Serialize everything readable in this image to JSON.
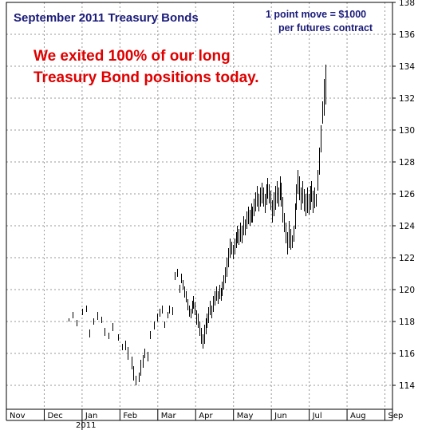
{
  "chart_data": {
    "type": "ohlc",
    "title": "September 2011 Treasury Bonds",
    "note_line1": "1 point move = $1000",
    "note_line2": "per futures contract",
    "annotation_line1": "We exited 100%  of our long",
    "annotation_line2": "Treasury Bond positions today.",
    "ylim": [
      112.5,
      138
    ],
    "yticks": [
      114,
      116,
      118,
      120,
      122,
      124,
      126,
      128,
      130,
      132,
      134,
      136,
      138
    ],
    "xlim": [
      0,
      10.2
    ],
    "months": [
      "Nov",
      "Dec",
      "Jan",
      "Feb",
      "Mar",
      "Apr",
      "May",
      "Jun",
      "Jul",
      "Aug",
      "Sep"
    ],
    "year_label": "2011",
    "grid": true,
    "bars": [
      [
        1.65,
        118.2,
        118.0
      ],
      [
        1.75,
        118.6,
        118.2
      ],
      [
        1.85,
        118.1,
        117.7
      ],
      [
        2.0,
        118.8,
        118.4
      ],
      [
        2.1,
        119.0,
        118.6
      ],
      [
        2.2,
        117.5,
        117.0
      ],
      [
        2.3,
        118.2,
        117.8
      ],
      [
        2.4,
        118.6,
        118.1
      ],
      [
        2.5,
        118.3,
        117.9
      ],
      [
        2.6,
        117.6,
        117.1
      ],
      [
        2.7,
        117.3,
        116.9
      ],
      [
        2.8,
        117.9,
        117.4
      ],
      [
        2.95,
        117.2,
        116.8
      ],
      [
        3.05,
        116.6,
        116.2
      ],
      [
        3.15,
        116.8,
        116.2
      ],
      [
        3.2,
        116.4,
        115.6
      ],
      [
        3.3,
        115.8,
        115.0
      ],
      [
        3.35,
        115.2,
        114.3
      ],
      [
        3.42,
        114.6,
        114.0
      ],
      [
        3.5,
        114.8,
        114.2
      ],
      [
        3.55,
        115.6,
        114.6
      ],
      [
        3.6,
        115.9,
        115.1
      ],
      [
        3.65,
        116.3,
        115.7
      ],
      [
        3.72,
        116.1,
        115.5
      ],
      [
        3.8,
        117.4,
        116.9
      ],
      [
        3.9,
        118.0,
        117.5
      ],
      [
        3.98,
        118.5,
        118.0
      ],
      [
        4.05,
        118.8,
        118.3
      ],
      [
        4.1,
        119.0,
        118.5
      ],
      [
        4.18,
        118.0,
        117.6
      ],
      [
        4.25,
        118.6,
        118.2
      ],
      [
        4.3,
        119.0,
        118.5
      ],
      [
        4.38,
        118.9,
        118.4
      ],
      [
        4.45,
        121.1,
        120.6
      ],
      [
        4.52,
        121.3,
        120.8
      ],
      [
        4.58,
        120.3,
        119.8
      ],
      [
        4.62,
        121.0,
        120.4
      ],
      [
        4.66,
        120.6,
        120.0
      ],
      [
        4.7,
        120.2,
        119.5
      ],
      [
        4.74,
        119.9,
        119.2
      ],
      [
        4.78,
        119.4,
        118.7
      ],
      [
        4.82,
        119.0,
        118.3
      ],
      [
        4.86,
        118.8,
        118.2
      ],
      [
        4.9,
        119.3,
        118.5
      ],
      [
        4.94,
        119.6,
        118.8
      ],
      [
        4.98,
        119.2,
        118.4
      ],
      [
        5.02,
        118.7,
        117.8
      ],
      [
        5.06,
        118.5,
        117.6
      ],
      [
        5.1,
        118.0,
        117.1
      ],
      [
        5.14,
        117.6,
        116.6
      ],
      [
        5.18,
        117.2,
        116.3
      ],
      [
        5.22,
        117.8,
        116.6
      ],
      [
        5.26,
        118.2,
        117.2
      ],
      [
        5.3,
        118.5,
        117.6
      ],
      [
        5.34,
        118.9,
        117.9
      ],
      [
        5.38,
        119.3,
        118.4
      ],
      [
        5.42,
        119.0,
        118.2
      ],
      [
        5.46,
        119.6,
        118.6
      ],
      [
        5.5,
        119.9,
        119.0
      ],
      [
        5.54,
        120.2,
        119.3
      ],
      [
        5.58,
        119.9,
        119.1
      ],
      [
        5.62,
        120.3,
        119.4
      ],
      [
        5.66,
        120.1,
        119.3
      ],
      [
        5.7,
        120.5,
        119.6
      ],
      [
        5.74,
        120.9,
        120.0
      ],
      [
        5.78,
        121.4,
        120.4
      ],
      [
        5.82,
        122.0,
        120.8
      ],
      [
        5.86,
        122.6,
        121.4
      ],
      [
        5.9,
        123.2,
        122.0
      ],
      [
        5.94,
        123.0,
        122.2
      ],
      [
        5.98,
        122.8,
        121.9
      ],
      [
        6.02,
        123.2,
        122.2
      ],
      [
        6.06,
        123.6,
        122.6
      ],
      [
        6.1,
        124.0,
        122.9
      ],
      [
        6.14,
        123.8,
        122.8
      ],
      [
        6.18,
        124.2,
        123.0
      ],
      [
        6.22,
        124.0,
        122.9
      ],
      [
        6.26,
        124.6,
        123.4
      ],
      [
        6.3,
        124.4,
        123.4
      ],
      [
        6.34,
        124.9,
        123.8
      ],
      [
        6.38,
        125.2,
        124.1
      ],
      [
        6.42,
        125.0,
        124.0
      ],
      [
        6.46,
        125.4,
        124.2
      ],
      [
        6.5,
        125.2,
        124.2
      ],
      [
        6.54,
        125.7,
        124.6
      ],
      [
        6.58,
        126.1,
        124.9
      ],
      [
        6.62,
        126.5,
        125.2
      ],
      [
        6.66,
        126.0,
        124.9
      ],
      [
        6.7,
        126.4,
        125.2
      ],
      [
        6.74,
        126.7,
        125.4
      ],
      [
        6.78,
        126.4,
        125.2
      ],
      [
        6.82,
        126.0,
        124.8
      ],
      [
        6.86,
        126.6,
        125.3
      ],
      [
        6.9,
        127.0,
        125.7
      ],
      [
        6.94,
        126.6,
        125.4
      ],
      [
        6.98,
        126.2,
        125.0
      ],
      [
        7.02,
        125.6,
        124.2
      ],
      [
        7.06,
        126.1,
        124.6
      ],
      [
        7.1,
        126.5,
        125.0
      ],
      [
        7.14,
        126.8,
        125.4
      ],
      [
        7.18,
        126.4,
        125.2
      ],
      [
        7.22,
        127.1,
        125.6
      ],
      [
        7.26,
        126.7,
        125.2
      ],
      [
        7.3,
        125.8,
        124.2
      ],
      [
        7.34,
        124.8,
        123.6
      ],
      [
        7.38,
        124.2,
        122.9
      ],
      [
        7.42,
        123.6,
        122.2
      ],
      [
        7.46,
        124.3,
        122.6
      ],
      [
        7.5,
        123.8,
        122.5
      ],
      [
        7.54,
        123.4,
        122.6
      ],
      [
        7.58,
        124.0,
        123.0
      ],
      [
        7.62,
        125.4,
        123.8
      ],
      [
        7.66,
        126.6,
        125.0
      ],
      [
        7.7,
        127.5,
        126.0
      ],
      [
        7.74,
        127.1,
        125.6
      ],
      [
        7.78,
        126.4,
        125.0
      ],
      [
        7.82,
        126.8,
        125.4
      ],
      [
        7.86,
        126.3,
        124.9
      ],
      [
        7.9,
        126.0,
        124.6
      ],
      [
        7.94,
        126.4,
        124.8
      ],
      [
        7.98,
        126.0,
        124.7
      ],
      [
        8.02,
        126.5,
        125.0
      ],
      [
        8.06,
        126.8,
        125.5
      ],
      [
        8.1,
        126.2,
        124.8
      ],
      [
        8.14,
        126.4,
        125.1
      ],
      [
        8.18,
        126.0,
        125.2
      ],
      [
        8.22,
        127.5,
        126.2
      ],
      [
        8.26,
        128.9,
        127.2
      ],
      [
        8.3,
        130.3,
        128.6
      ],
      [
        8.34,
        131.8,
        130.4
      ],
      [
        8.38,
        133.2,
        130.9
      ],
      [
        8.42,
        134.1,
        131.6
      ]
    ]
  }
}
